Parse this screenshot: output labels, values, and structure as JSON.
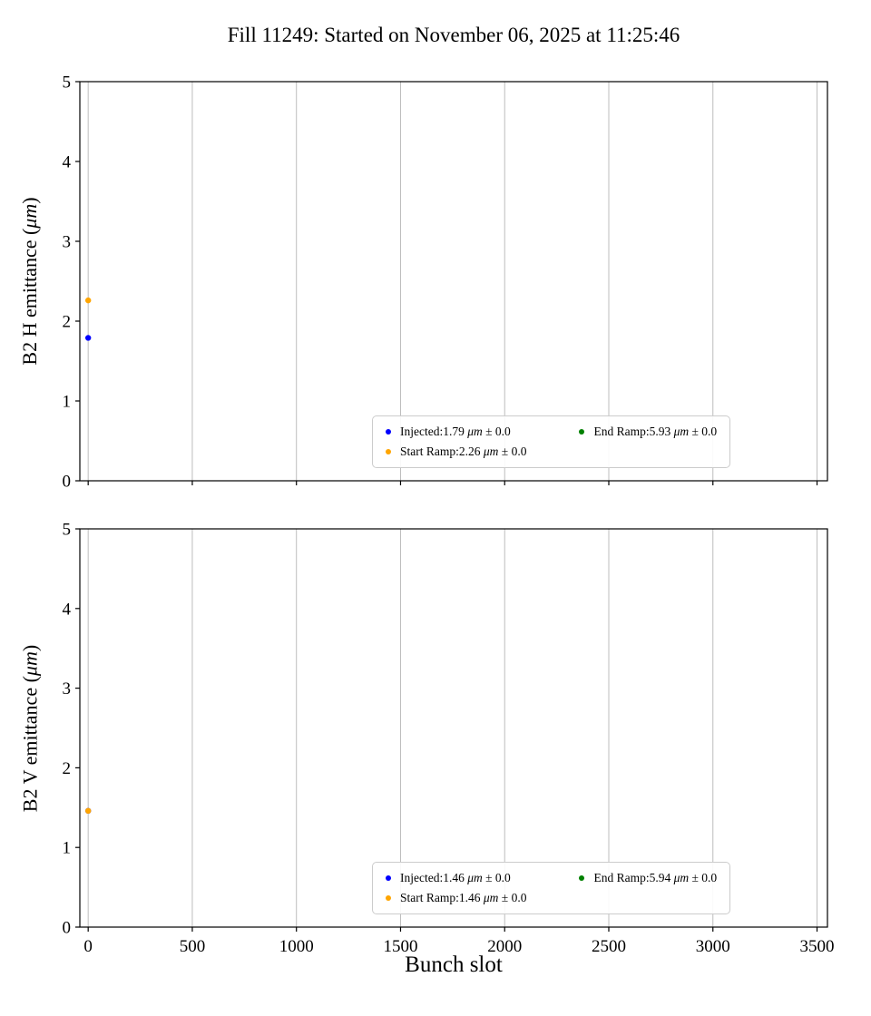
{
  "title": "Fill 11249: Started on November 06, 2025 at 11:25:46",
  "xlabel": "Bunch slot",
  "style": {
    "grid_color": "#bdbdbd",
    "spine_color": "#000000",
    "legend_border_color": "#cccccc"
  },
  "chart_data": [
    {
      "type": "scatter",
      "ylabel": "B2 H emittance (μm)",
      "xlim": [
        -40,
        3550
      ],
      "ylim": [
        0,
        5
      ],
      "xticks": [
        0,
        500,
        1000,
        1500,
        2000,
        2500,
        3000,
        3500
      ],
      "yticks": [
        0,
        1,
        2,
        3,
        4,
        5
      ],
      "grid": "vertical",
      "legend_position": "lower right",
      "legend_columns": 2,
      "series": [
        {
          "name": "Injected",
          "color": "#0000ff",
          "value": 1.79,
          "uncertainty": 0.0,
          "points": [
            {
              "x": 0,
              "y": 1.79
            }
          ],
          "legend": "Injected:1.79 μm ± 0.0"
        },
        {
          "name": "Start Ramp",
          "color": "#ffa500",
          "value": 2.26,
          "uncertainty": 0.0,
          "points": [
            {
              "x": 0,
              "y": 2.26
            }
          ],
          "legend": "Start Ramp:2.26 μm ± 0.0"
        },
        {
          "name": "End Ramp",
          "color": "#008000",
          "value": 5.93,
          "uncertainty": 0.0,
          "points": [
            {
              "x": 0,
              "y": 5.93
            }
          ],
          "legend": "End Ramp:5.93 μm ± 0.0"
        }
      ]
    },
    {
      "type": "scatter",
      "ylabel": "B2 V emittance (μm)",
      "xlim": [
        -40,
        3550
      ],
      "ylim": [
        0,
        5
      ],
      "xticks": [
        0,
        500,
        1000,
        1500,
        2000,
        2500,
        3000,
        3500
      ],
      "yticks": [
        0,
        1,
        2,
        3,
        4,
        5
      ],
      "grid": "vertical",
      "legend_position": "lower right",
      "legend_columns": 2,
      "series": [
        {
          "name": "Injected",
          "color": "#0000ff",
          "value": 1.46,
          "uncertainty": 0.0,
          "points": [
            {
              "x": 0,
              "y": 1.46
            }
          ],
          "legend": "Injected:1.46 μm ± 0.0"
        },
        {
          "name": "Start Ramp",
          "color": "#ffa500",
          "value": 1.46,
          "uncertainty": 0.0,
          "points": [
            {
              "x": 0,
              "y": 1.46
            }
          ],
          "legend": "Start Ramp:1.46 μm ± 0.0"
        },
        {
          "name": "End Ramp",
          "color": "#008000",
          "value": 5.94,
          "uncertainty": 0.0,
          "points": [
            {
              "x": 0,
              "y": 5.94
            }
          ],
          "legend": "End Ramp:5.94 μm ± 0.0"
        }
      ]
    }
  ]
}
